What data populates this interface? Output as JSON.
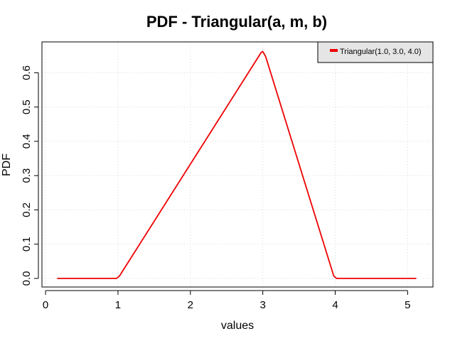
{
  "chart_data": {
    "type": "line",
    "title": "PDF - Triangular(a, m, b)",
    "xlabel": "values",
    "ylabel": "PDF",
    "xlim": [
      -0.05,
      5.35
    ],
    "ylim": [
      -0.025,
      0.69
    ],
    "xticks": [
      0,
      1,
      2,
      3,
      4,
      5
    ],
    "yticks": [
      0.0,
      0.1,
      0.2,
      0.3,
      0.4,
      0.5,
      0.6
    ],
    "ytick_labels": [
      "0.0",
      "0.1",
      "0.2",
      "0.3",
      "0.4",
      "0.5",
      "0.6"
    ],
    "grid": true,
    "legend_position": "top-right",
    "series": [
      {
        "name": "Triangular(1.0, 3.0, 4.0)",
        "color": "#ee0000",
        "x": [
          0.16,
          0.98,
          1.02,
          2.98,
          3.0,
          3.04,
          3.98,
          4.02,
          5.12
        ],
        "y": [
          0.0,
          0.0,
          0.007,
          0.66,
          0.662,
          0.647,
          0.007,
          0.0,
          0.0
        ]
      }
    ]
  }
}
